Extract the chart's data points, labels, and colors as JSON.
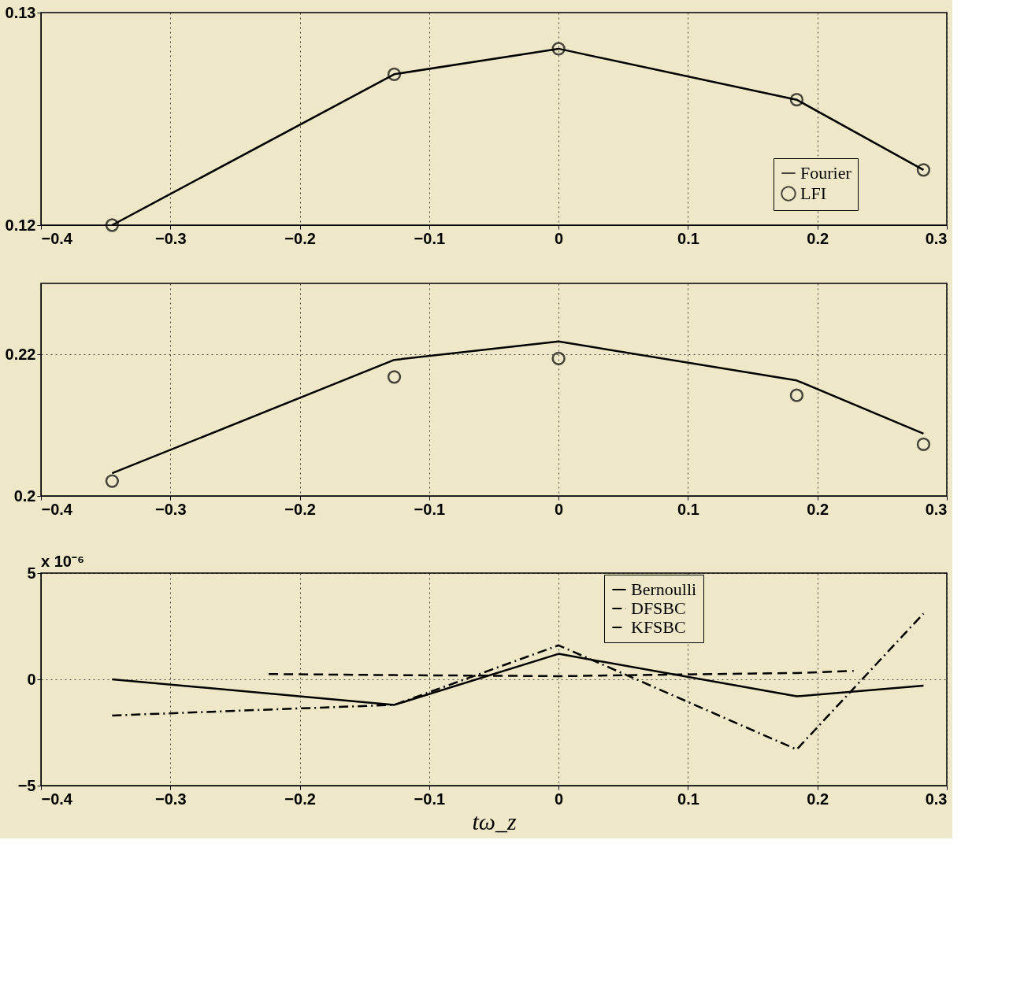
{
  "chart_data": [
    {
      "type": "line",
      "xlim": [
        -0.4,
        0.3
      ],
      "xticks": [
        -0.4,
        -0.3,
        -0.2,
        -0.1,
        0,
        0.1,
        0.2,
        0.3
      ],
      "ylim": [
        0.12,
        0.13
      ],
      "yticks": [
        0.12,
        0.13
      ],
      "grid": "x",
      "legend": "bottom right",
      "series": [
        {
          "name": "Fourier",
          "color": "#000000",
          "line_style": "solid",
          "x": [
            -0.345,
            -0.127,
            0,
            0.184,
            0.282
          ],
          "values": [
            0.12,
            0.1271,
            0.1283,
            0.1259,
            0.1226
          ]
        },
        {
          "name": "LFI",
          "type": "scatter",
          "marker": "circle",
          "color": "#000000",
          "x": [
            -0.345,
            -0.127,
            0,
            0.184,
            0.282
          ],
          "values": [
            0.12,
            0.1271,
            0.1283,
            0.1259,
            0.1226
          ]
        }
      ]
    },
    {
      "type": "line",
      "xlim": [
        -0.4,
        0.3
      ],
      "xticks": [
        -0.4,
        -0.3,
        -0.2,
        -0.1,
        0,
        0.1,
        0.2,
        0.3
      ],
      "ylim": [
        0.2,
        0.23
      ],
      "yticks": [
        0.2,
        0.22
      ],
      "grid": true,
      "series": [
        {
          "color": "#000000",
          "line_style": "solid",
          "x": [
            -0.345,
            -0.127,
            0,
            0.184,
            0.282
          ],
          "values": [
            0.2032,
            0.2192,
            0.2218,
            0.2163,
            0.2088
          ]
        },
        {
          "type": "scatter",
          "marker": "circle",
          "color": "#000000",
          "x": [
            -0.345,
            -0.127,
            0,
            0.184,
            0.282
          ],
          "values": [
            0.2021,
            0.2168,
            0.2194,
            0.2142,
            0.2073
          ]
        }
      ]
    },
    {
      "type": "line",
      "xlabel": "tω_z",
      "annotations": [
        "x 10⁻⁶"
      ],
      "xlim": [
        -0.4,
        0.3
      ],
      "xticks": [
        -0.4,
        -0.3,
        -0.2,
        -0.1,
        0,
        0.1,
        0.2,
        0.3
      ],
      "ylim": [
        -5,
        5
      ],
      "yticks": [
        -5,
        0,
        5
      ],
      "grid": true,
      "legend": "top right",
      "series": [
        {
          "name": "Bernoulli",
          "color": "#000000",
          "line_style": "solid",
          "x": [
            -0.345,
            -0.127,
            0,
            0.184,
            0.282
          ],
          "values": [
            0.0,
            -1.2,
            1.2,
            -0.8,
            -0.3
          ]
        },
        {
          "name": "DFSBC",
          "color": "#000000",
          "line_style": "dashdot",
          "x": [
            -0.345,
            -0.127,
            0,
            0.184,
            0.282
          ],
          "values": [
            -1.7,
            -1.2,
            1.6,
            -3.3,
            3.1
          ]
        },
        {
          "name": "KFSBC",
          "color": "#000000",
          "line_style": "dashed",
          "x": [
            -0.224,
            -0.127,
            0,
            0.184,
            0.228
          ],
          "values": [
            0.25,
            0.2,
            0.15,
            0.3,
            0.4
          ]
        }
      ]
    }
  ]
}
